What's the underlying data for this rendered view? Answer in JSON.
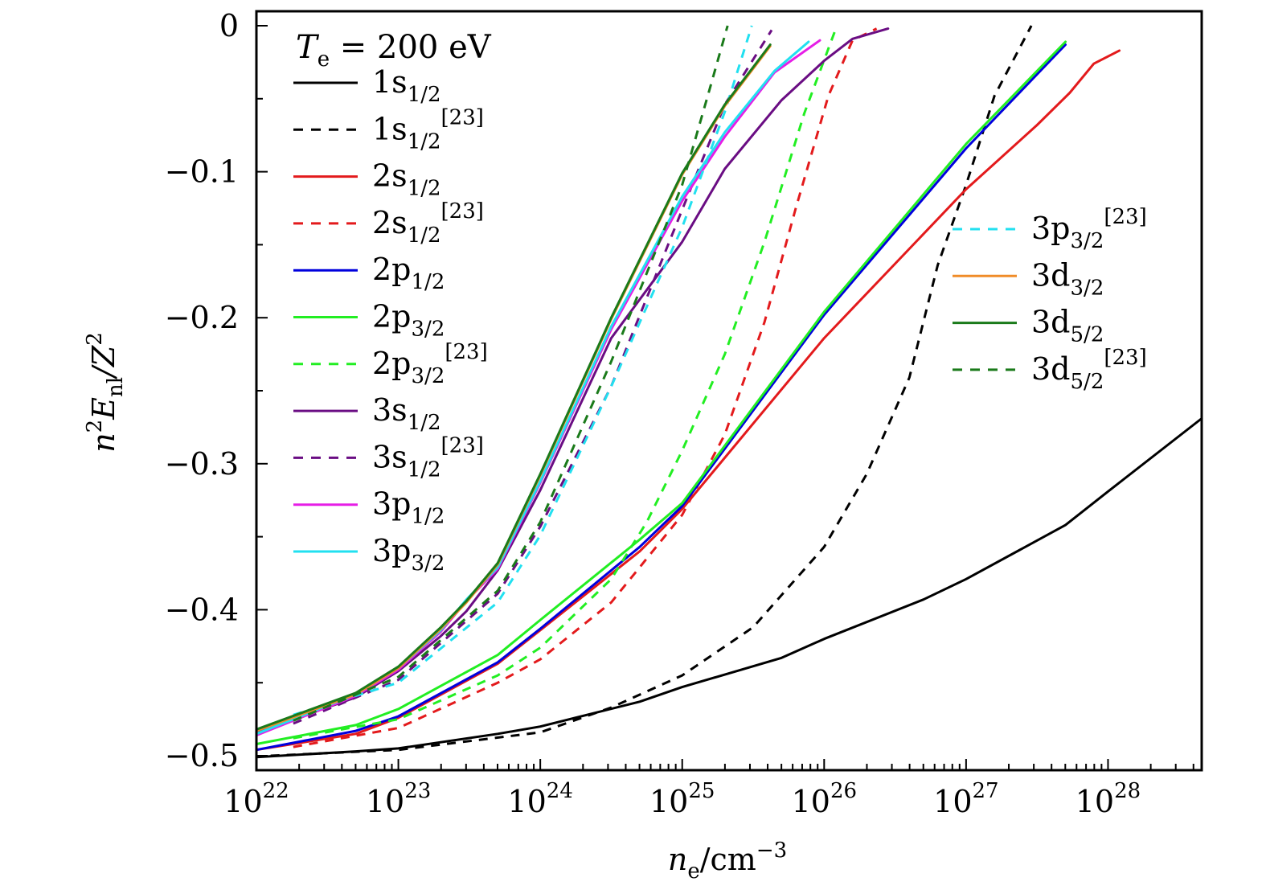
{
  "chart_data": {
    "type": "line",
    "title": "",
    "annotation": {
      "symbol": "T",
      "subscript": "e",
      "text": " = 200 eV"
    },
    "xlabel": {
      "symbol": "n",
      "subscript": "e",
      "unit": "/cm",
      "superscript": "−3"
    },
    "ylabel": {
      "prefix": "n",
      "prefix_sup": "2",
      "symbol": "E",
      "subscript": "nl",
      "suffix": "/Z",
      "suffix_sup": "2"
    },
    "xscale": "log",
    "xlim_log10": [
      22,
      28.66
    ],
    "ylim": [
      -0.51,
      0.01
    ],
    "grid": false,
    "x_ticks": [
      {
        "base": "10",
        "exp": "22"
      },
      {
        "base": "10",
        "exp": "23"
      },
      {
        "base": "10",
        "exp": "24"
      },
      {
        "base": "10",
        "exp": "25"
      },
      {
        "base": "10",
        "exp": "26"
      },
      {
        "base": "10",
        "exp": "27"
      },
      {
        "base": "10",
        "exp": "28"
      }
    ],
    "y_ticks": [
      {
        "value": 0,
        "label": "0"
      },
      {
        "value": -0.1,
        "label": "−0.1"
      },
      {
        "value": -0.2,
        "label": "−0.2"
      },
      {
        "value": -0.3,
        "label": "−0.3"
      },
      {
        "value": -0.4,
        "label": "−0.4"
      },
      {
        "value": -0.5,
        "label": "−0.5"
      }
    ],
    "legend": {
      "placement_left": "top-left",
      "placement_right": "center-right"
    },
    "series": [
      {
        "name": "1s",
        "sub": "1/2",
        "ref": "",
        "color": "#000000",
        "dash": false,
        "legend_col": 0,
        "x_log10": [
          22,
          22.7,
          23,
          23.7,
          24,
          24.7,
          25,
          25.7,
          26,
          26.7,
          27,
          27.7,
          28,
          28.66
        ],
        "y": [
          -0.501,
          -0.497,
          -0.495,
          -0.485,
          -0.48,
          -0.463,
          -0.453,
          -0.433,
          -0.42,
          -0.393,
          -0.379,
          -0.342,
          -0.319,
          -0.269
        ]
      },
      {
        "name": "1s",
        "sub": "1/2",
        "ref": "[23]",
        "color": "#000000",
        "dash": true,
        "legend_col": 0,
        "x_log10": [
          22.1,
          23,
          24,
          24.5,
          25,
          25.5,
          26,
          26.3,
          26.6,
          26.8,
          27,
          27.2,
          27.46
        ],
        "y": [
          -0.5,
          -0.496,
          -0.484,
          -0.467,
          -0.445,
          -0.412,
          -0.357,
          -0.307,
          -0.241,
          -0.164,
          -0.109,
          -0.048,
          0.0
        ]
      },
      {
        "name": "2s",
        "sub": "1/2",
        "ref": "",
        "color": "#e31a1c",
        "dash": false,
        "legend_col": 0,
        "x_log10": [
          22,
          22.7,
          23,
          23.7,
          24,
          24.7,
          25,
          26,
          27,
          27.5,
          27.73,
          27.9,
          28.08
        ],
        "y": [
          -0.496,
          -0.485,
          -0.474,
          -0.437,
          -0.414,
          -0.36,
          -0.331,
          -0.214,
          -0.112,
          -0.068,
          -0.046,
          -0.026,
          -0.017
        ]
      },
      {
        "name": "2s",
        "sub": "1/2",
        "ref": "[23]",
        "color": "#e31a1c",
        "dash": true,
        "legend_col": 0,
        "x_log10": [
          22.26,
          23,
          23.7,
          24,
          24.5,
          25,
          25.3,
          25.58,
          25.8,
          26.03,
          26.2,
          26.37
        ],
        "y": [
          -0.494,
          -0.481,
          -0.45,
          -0.434,
          -0.395,
          -0.335,
          -0.28,
          -0.203,
          -0.125,
          -0.048,
          -0.01,
          -0.002
        ]
      },
      {
        "name": "2p",
        "sub": "1/2",
        "ref": "",
        "color": "#0000dd",
        "dash": false,
        "legend_col": 0,
        "x_log10": [
          22,
          22.7,
          23,
          23.7,
          24,
          24.7,
          25,
          26,
          27,
          27.7
        ],
        "y": [
          -0.496,
          -0.483,
          -0.473,
          -0.436,
          -0.413,
          -0.357,
          -0.329,
          -0.198,
          -0.084,
          -0.013
        ]
      },
      {
        "name": "2p",
        "sub": "3/2",
        "ref": "",
        "color": "#22ee22",
        "dash": false,
        "legend_col": 0,
        "x_log10": [
          22,
          22.7,
          23,
          23.7,
          24,
          24.7,
          25,
          26,
          27,
          27.7
        ],
        "y": [
          -0.492,
          -0.479,
          -0.468,
          -0.431,
          -0.407,
          -0.352,
          -0.327,
          -0.196,
          -0.081,
          -0.011
        ]
      },
      {
        "name": "2p",
        "sub": "3/2",
        "ref": "[23]",
        "color": "#22ee22",
        "dash": true,
        "legend_col": 0,
        "x_log10": [
          22.26,
          23,
          23.7,
          24,
          24.5,
          24.75,
          25,
          25.3,
          25.58,
          25.86,
          26.09
        ],
        "y": [
          -0.488,
          -0.475,
          -0.445,
          -0.426,
          -0.379,
          -0.34,
          -0.291,
          -0.225,
          -0.148,
          -0.06,
          0.0
        ]
      },
      {
        "name": "3s",
        "sub": "1/2",
        "ref": "",
        "color": "#6a0d83",
        "dash": false,
        "legend_col": 0,
        "x_log10": [
          22,
          22.7,
          23,
          23.3,
          23.48,
          23.7,
          24,
          24.5,
          25,
          25.3,
          25.7,
          26,
          26.2,
          26.45
        ],
        "y": [
          -0.484,
          -0.46,
          -0.442,
          -0.418,
          -0.401,
          -0.373,
          -0.318,
          -0.214,
          -0.148,
          -0.098,
          -0.051,
          -0.024,
          -0.009,
          -0.002
        ]
      },
      {
        "name": "3s",
        "sub": "1/2",
        "ref": "[23]",
        "color": "#6a0d83",
        "dash": true,
        "legend_col": 0,
        "x_log10": [
          22.26,
          23,
          23.7,
          24,
          24.5,
          25,
          25.3,
          25.63
        ],
        "y": [
          -0.478,
          -0.448,
          -0.389,
          -0.343,
          -0.247,
          -0.126,
          -0.054,
          -0.003
        ]
      },
      {
        "name": "3p",
        "sub": "1/2",
        "ref": "",
        "color": "#e61ee6",
        "dash": false,
        "legend_col": 0,
        "x_log10": [
          22,
          22.7,
          23,
          23.3,
          23.48,
          23.7,
          24,
          24.5,
          25,
          25.3,
          25.65,
          25.97
        ],
        "y": [
          -0.486,
          -0.459,
          -0.441,
          -0.415,
          -0.394,
          -0.372,
          -0.313,
          -0.208,
          -0.12,
          -0.076,
          -0.032,
          -0.01
        ]
      },
      {
        "name": "3p",
        "sub": "3/2",
        "ref": "",
        "color": "#22e0f0",
        "dash": false,
        "legend_col": 0,
        "x_log10": [
          22,
          22.7,
          23,
          23.3,
          23.48,
          23.7,
          24,
          24.5,
          25,
          25.3,
          25.65,
          25.89
        ],
        "y": [
          -0.485,
          -0.458,
          -0.44,
          -0.414,
          -0.393,
          -0.371,
          -0.312,
          -0.206,
          -0.117,
          -0.073,
          -0.031,
          -0.011
        ]
      },
      {
        "name": "3p",
        "sub": "3/2",
        "ref": "[23]",
        "color": "#22e0f0",
        "dash": true,
        "legend_col": 1,
        "x_log10": [
          22.26,
          23,
          23.7,
          24,
          24.5,
          25,
          25.3,
          25.49
        ],
        "y": [
          -0.472,
          -0.45,
          -0.395,
          -0.349,
          -0.247,
          -0.138,
          -0.059,
          0.0
        ]
      },
      {
        "name": "3d",
        "sub": "3/2",
        "ref": "",
        "color": "#f08c28",
        "dash": false,
        "legend_col": 1,
        "x_log10": [
          22,
          22.7,
          23,
          23.3,
          23.48,
          23.7,
          24,
          24.5,
          25,
          25.3,
          25.62
        ],
        "y": [
          -0.483,
          -0.458,
          -0.44,
          -0.413,
          -0.395,
          -0.369,
          -0.308,
          -0.201,
          -0.102,
          -0.055,
          -0.014
        ]
      },
      {
        "name": "3d",
        "sub": "5/2",
        "ref": "",
        "color": "#1a7a1a",
        "dash": false,
        "legend_col": 1,
        "x_log10": [
          22,
          22.7,
          23,
          23.3,
          23.48,
          23.7,
          24,
          24.5,
          25,
          25.3,
          25.62
        ],
        "y": [
          -0.482,
          -0.457,
          -0.439,
          -0.412,
          -0.394,
          -0.368,
          -0.307,
          -0.2,
          -0.101,
          -0.054,
          -0.013
        ]
      },
      {
        "name": "3d",
        "sub": "5/2",
        "ref": "[23]",
        "color": "#1a7a1a",
        "dash": true,
        "legend_col": 1,
        "x_log10": [
          22.26,
          23,
          23.7,
          24,
          24.5,
          25,
          25.18,
          25.32
        ],
        "y": [
          -0.476,
          -0.446,
          -0.387,
          -0.34,
          -0.23,
          -0.109,
          -0.048,
          0.0
        ]
      }
    ]
  }
}
